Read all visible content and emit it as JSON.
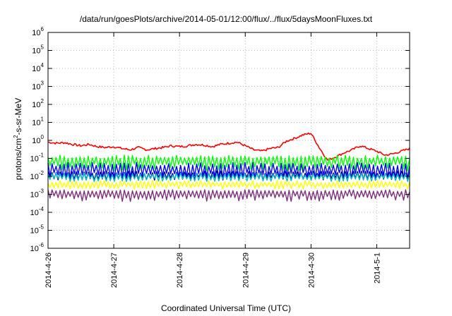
{
  "chart_data": {
    "type": "line",
    "title": "/data/run/goesPlots/archive/2014-05-01/12:00/flux/../flux/5daysMoonFluxes.txt",
    "xlabel": "Coordinated Universal Time (UTC)",
    "ylabel": "protons/cm²-s-sr-MeV",
    "ylabel_base": "protons/cm",
    "ylabel_sup": "2",
    "ylabel_rest": "-s-sr-MeV",
    "yscale": "log",
    "ylim": [
      1e-06,
      1000000.0
    ],
    "xlim": [
      "2014-04-26 00:00",
      "2014-05-01 12:00"
    ],
    "grid": true,
    "y_ticks": [
      {
        "value": 1000000.0,
        "base": "10",
        "exp": "6"
      },
      {
        "value": 100000.0,
        "base": "10",
        "exp": "5"
      },
      {
        "value": 10000.0,
        "base": "10",
        "exp": "4"
      },
      {
        "value": 1000.0,
        "base": "10",
        "exp": "3"
      },
      {
        "value": 100.0,
        "base": "10",
        "exp": "2"
      },
      {
        "value": 10.0,
        "base": "10",
        "exp": "1"
      },
      {
        "value": 1.0,
        "base": "10",
        "exp": "0"
      },
      {
        "value": 0.1,
        "base": "10",
        "exp": "-1"
      },
      {
        "value": 0.01,
        "base": "10",
        "exp": "-2"
      },
      {
        "value": 0.001,
        "base": "10",
        "exp": "-3"
      },
      {
        "value": 0.0001,
        "base": "10",
        "exp": "-4"
      },
      {
        "value": 1e-05,
        "base": "10",
        "exp": "-5"
      },
      {
        "value": 1e-06,
        "base": "10",
        "exp": "-6"
      }
    ],
    "x_ticks": [
      {
        "label": "2014-4-26",
        "time": "2014-04-26 00:00"
      },
      {
        "label": "2014-4-27",
        "time": "2014-04-27 00:00"
      },
      {
        "label": "2014-4-28",
        "time": "2014-04-28 00:00"
      },
      {
        "label": "2014-4-29",
        "time": "2014-04-29 00:00"
      },
      {
        "label": "2014-4-30",
        "time": "2014-04-30 00:00"
      },
      {
        "label": "2014-5-1",
        "time": "2014-05-01 00:00"
      }
    ],
    "series": [
      {
        "color": "#ff0000",
        "x": [
          "2014-04-26 00:00",
          "2014-04-26 03:00",
          "2014-04-26 06:00",
          "2014-04-26 09:00",
          "2014-04-26 12:00",
          "2014-04-26 15:00",
          "2014-04-26 18:00",
          "2014-04-26 21:00",
          "2014-04-27 00:00",
          "2014-04-27 03:00",
          "2014-04-27 06:00",
          "2014-04-27 09:00",
          "2014-04-27 12:00",
          "2014-04-27 15:00",
          "2014-04-27 18:00",
          "2014-04-27 21:00",
          "2014-04-28 00:00",
          "2014-04-28 03:00",
          "2014-04-28 06:00",
          "2014-04-28 09:00",
          "2014-04-28 12:00",
          "2014-04-28 15:00",
          "2014-04-28 18:00",
          "2014-04-28 21:00",
          "2014-04-29 00:00",
          "2014-04-29 03:00",
          "2014-04-29 06:00",
          "2014-04-29 09:00",
          "2014-04-29 12:00",
          "2014-04-29 15:00",
          "2014-04-29 18:00",
          "2014-04-29 21:00",
          "2014-04-30 00:00",
          "2014-04-30 03:00",
          "2014-04-30 06:00",
          "2014-04-30 09:00",
          "2014-04-30 12:00",
          "2014-04-30 15:00",
          "2014-04-30 18:00",
          "2014-04-30 21:00",
          "2014-05-01 00:00",
          "2014-05-01 03:00",
          "2014-05-01 06:00",
          "2014-05-01 09:00",
          "2014-05-01 12:00"
        ],
        "y": [
          0.8,
          0.7,
          0.75,
          0.6,
          0.5,
          0.6,
          0.45,
          0.4,
          0.45,
          0.35,
          0.3,
          0.4,
          0.3,
          0.35,
          0.4,
          0.5,
          0.45,
          0.5,
          0.6,
          0.55,
          0.45,
          0.6,
          0.7,
          0.8,
          0.5,
          0.3,
          0.25,
          0.35,
          0.4,
          0.9,
          1.3,
          2.0,
          2.5,
          0.4,
          0.08,
          0.12,
          0.2,
          0.3,
          0.5,
          0.35,
          0.25,
          0.15,
          0.18,
          0.25,
          0.35
        ]
      },
      {
        "color": "#00ff00",
        "y_level": 0.08,
        "x_start": "2014-04-26 00:00",
        "x_end": "2014-05-01 12:00",
        "y_range": [
          0.02,
          0.15
        ]
      },
      {
        "color": "#0000ff",
        "y_level": 0.025,
        "x_start": "2014-04-26 00:00",
        "x_end": "2014-05-01 12:00",
        "y_range": [
          0.007,
          0.06
        ]
      },
      {
        "color": "#0000a0",
        "y_level": 0.012,
        "x_start": "2014-04-26 00:00",
        "x_end": "2014-05-01 12:00",
        "y_range": [
          0.006,
          0.02
        ]
      },
      {
        "color": "#00c0c0",
        "y_level": 0.01,
        "x_start": "2014-04-26 00:00",
        "x_end": "2014-05-01 12:00",
        "y_range": [
          0.005,
          0.015
        ]
      },
      {
        "color": "#ffff00",
        "y_level": 0.0035,
        "x_start": "2014-04-26 00:00",
        "x_end": "2014-05-01 12:00",
        "y_range": [
          0.002,
          0.006
        ]
      },
      {
        "color": "#803080",
        "y_level": 0.0012,
        "x_start": "2014-04-26 00:00",
        "x_end": "2014-05-01 12:00",
        "y_range": [
          0.0004,
          0.0018
        ]
      }
    ]
  }
}
